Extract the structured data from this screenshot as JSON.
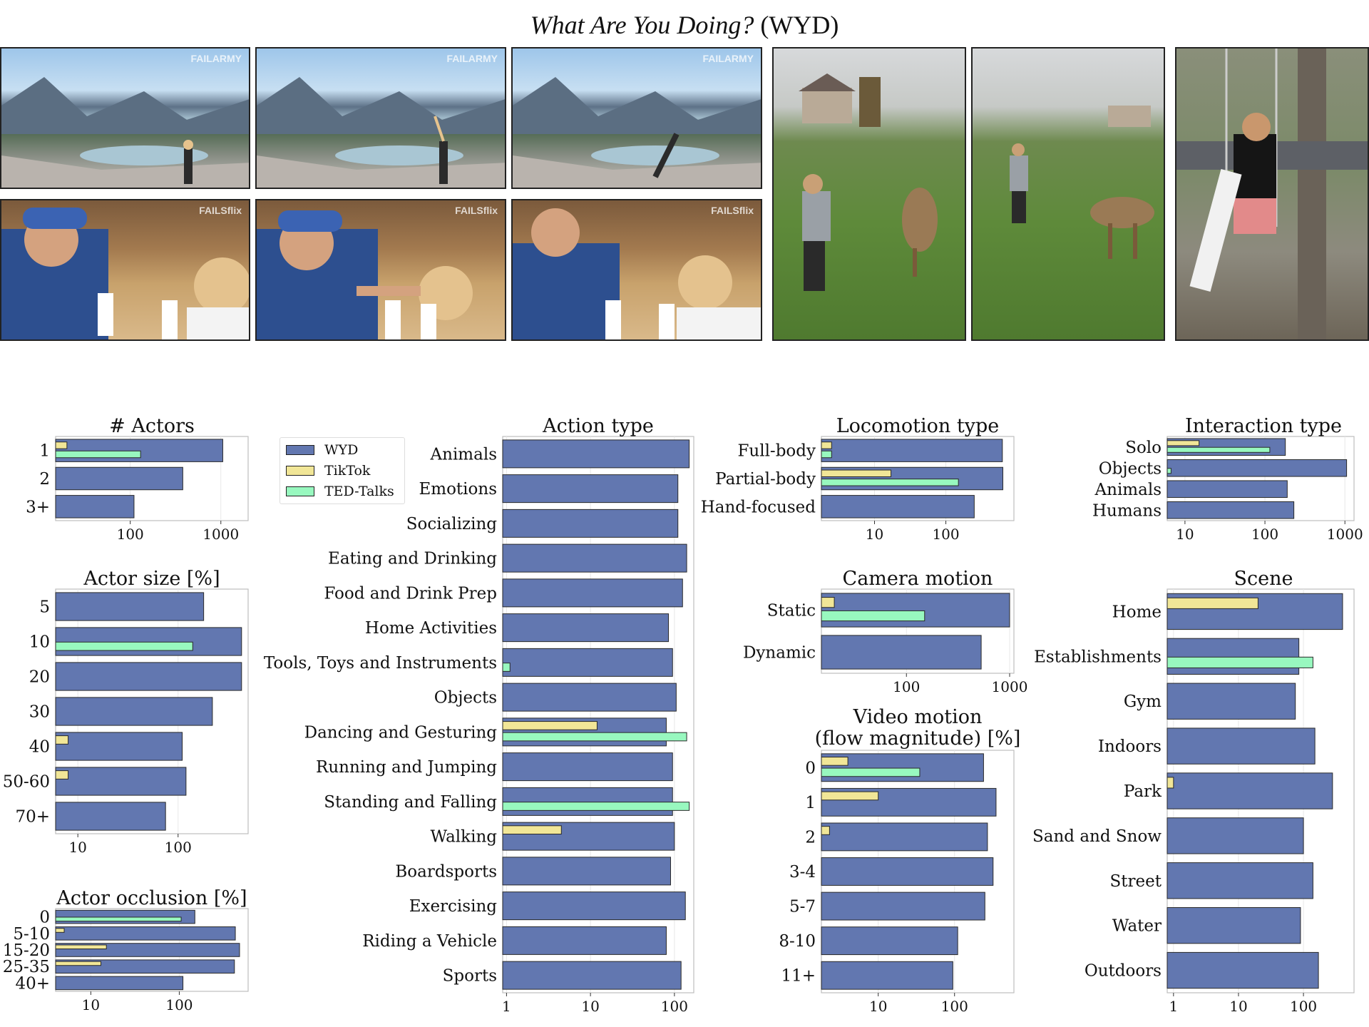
{
  "figure": {
    "title_italic": "What Are You Doing?",
    "title_rest": " (WYD)"
  },
  "frames": [
    {
      "scene": "mountain-lake-cartwheel-1",
      "watermark": "FAILARMY"
    },
    {
      "scene": "mountain-lake-cartwheel-2",
      "watermark": "FAILARMY"
    },
    {
      "scene": "mountain-lake-cartwheel-3",
      "watermark": "FAILARMY"
    },
    {
      "scene": "restaurant-ice-cream-1",
      "watermark": "FAILSflix"
    },
    {
      "scene": "restaurant-ice-cream-2",
      "watermark": "FAILSflix"
    },
    {
      "scene": "restaurant-ice-cream-3",
      "watermark": "FAILSflix"
    },
    {
      "scene": "lawn-deer-1",
      "watermark": ""
    },
    {
      "scene": "lawn-deer-2",
      "watermark": ""
    },
    {
      "scene": "tree-swing",
      "watermark": ""
    }
  ],
  "colors": {
    "WYD": "#6277b0",
    "TikTok": "#f1e697",
    "TED-Talks": "#98f8bf",
    "edge": "#2a2a2a",
    "grid": "#e8e8e8"
  },
  "legend": [
    "WYD",
    "TikTok",
    "TED-Talks"
  ],
  "chart_data": [
    {
      "type": "bar",
      "orientation": "horizontal",
      "scale": "log",
      "title": "# Actors",
      "xlim": [
        15,
        2000
      ],
      "ticks": [
        100,
        1000
      ],
      "tick_labels": [
        "100",
        "1000"
      ],
      "categories": [
        "1",
        "2",
        "3+"
      ],
      "series": [
        {
          "name": "WYD",
          "values": [
            1050,
            380,
            110
          ]
        },
        {
          "name": "TikTok",
          "values": [
            20,
            null,
            null
          ]
        },
        {
          "name": "TED-Talks",
          "values": [
            130,
            null,
            null
          ]
        }
      ]
    },
    {
      "type": "bar",
      "orientation": "horizontal",
      "scale": "log",
      "title": "Actor size [%]",
      "xlim": [
        6,
        500
      ],
      "ticks": [
        10,
        100
      ],
      "tick_labels": [
        "10",
        "100"
      ],
      "categories": [
        "5",
        "10",
        "20",
        "30",
        "40",
        "50-60",
        "70+"
      ],
      "series": [
        {
          "name": "WYD",
          "values": [
            180,
            430,
            430,
            220,
            110,
            120,
            75
          ]
        },
        {
          "name": "TikTok",
          "values": [
            null,
            null,
            null,
            null,
            8,
            8,
            null
          ]
        },
        {
          "name": "TED-Talks",
          "values": [
            null,
            140,
            null,
            null,
            null,
            null,
            null
          ]
        }
      ]
    },
    {
      "type": "bar",
      "orientation": "horizontal",
      "scale": "log",
      "title": "Actor occlusion [%]",
      "xlim": [
        4,
        600
      ],
      "ticks": [
        10,
        100
      ],
      "tick_labels": [
        "10",
        "100"
      ],
      "categories": [
        "0",
        "5-10",
        "15-20",
        "25-35",
        "40+"
      ],
      "series": [
        {
          "name": "WYD",
          "values": [
            150,
            430,
            480,
            420,
            110
          ]
        },
        {
          "name": "TikTok",
          "values": [
            null,
            5,
            15,
            13,
            null
          ]
        },
        {
          "name": "TED-Talks",
          "values": [
            105,
            null,
            null,
            null,
            null
          ]
        }
      ]
    },
    {
      "type": "bar",
      "orientation": "horizontal",
      "scale": "log",
      "title": "Action type",
      "xlim": [
        0.9,
        170
      ],
      "ticks": [
        1,
        10,
        100
      ],
      "tick_labels": [
        "1",
        "10",
        "100"
      ],
      "categories": [
        "Animals",
        "Emotions",
        "Socializing",
        "Eating and Drinking",
        "Food and Drink Prep",
        "Home Activities",
        "Tools, Toys and Instruments",
        "Objects",
        "Dancing and Gesturing",
        "Running and Jumping",
        "Standing and Falling",
        "Walking",
        "Boardsports",
        "Exercising",
        "Riding a Vehicle",
        "Sports"
      ],
      "series": [
        {
          "name": "WYD",
          "values": [
            150,
            110,
            110,
            140,
            125,
            85,
            95,
            105,
            80,
            95,
            95,
            100,
            90,
            135,
            80,
            120
          ]
        },
        {
          "name": "TikTok",
          "values": [
            null,
            null,
            null,
            null,
            null,
            null,
            null,
            null,
            12,
            null,
            null,
            4.5,
            null,
            null,
            null,
            null
          ]
        },
        {
          "name": "TED-Talks",
          "values": [
            null,
            null,
            null,
            null,
            null,
            null,
            1.1,
            null,
            140,
            null,
            150,
            null,
            null,
            null,
            null,
            null
          ]
        }
      ]
    },
    {
      "type": "bar",
      "orientation": "horizontal",
      "scale": "log",
      "title": "Locomotion type",
      "xlim": [
        1.8,
        900
      ],
      "ticks": [
        10,
        100
      ],
      "tick_labels": [
        "10",
        "100"
      ],
      "categories": [
        "Full-body",
        "Partial-body",
        "Hand-focused"
      ],
      "series": [
        {
          "name": "WYD",
          "values": [
            620,
            630,
            250
          ]
        },
        {
          "name": "TikTok",
          "values": [
            2.5,
            17,
            null
          ]
        },
        {
          "name": "TED-Talks",
          "values": [
            2.5,
            150,
            null
          ]
        }
      ]
    },
    {
      "type": "bar",
      "orientation": "horizontal",
      "scale": "log",
      "title": "Camera motion",
      "xlim": [
        15,
        1100
      ],
      "ticks": [
        100,
        1000
      ],
      "tick_labels": [
        "100",
        "1000"
      ],
      "categories": [
        "Static",
        "Dynamic"
      ],
      "series": [
        {
          "name": "WYD",
          "values": [
            1000,
            530
          ]
        },
        {
          "name": "TikTok",
          "values": [
            20,
            null
          ]
        },
        {
          "name": "TED-Talks",
          "values": [
            150,
            null
          ]
        }
      ]
    },
    {
      "type": "bar",
      "orientation": "horizontal",
      "scale": "log",
      "title": "Video motion (flow magnitude) [%]",
      "xlim": [
        1.8,
        600
      ],
      "ticks": [
        10,
        100
      ],
      "tick_labels": [
        "10",
        "100"
      ],
      "categories": [
        "0",
        "1",
        "2",
        "3-4",
        "5-7",
        "8-10",
        "11+"
      ],
      "series": [
        {
          "name": "WYD",
          "values": [
            240,
            350,
            270,
            320,
            250,
            110,
            95
          ]
        },
        {
          "name": "TikTok",
          "values": [
            4,
            10,
            2.3,
            null,
            null,
            null,
            null
          ]
        },
        {
          "name": "TED-Talks",
          "values": [
            35,
            null,
            null,
            null,
            null,
            null,
            null
          ]
        }
      ]
    },
    {
      "type": "bar",
      "orientation": "horizontal",
      "scale": "log",
      "title": "Interaction type",
      "xlim": [
        6,
        1300
      ],
      "ticks": [
        10,
        100,
        1000
      ],
      "tick_labels": [
        "10",
        "100",
        "1000"
      ],
      "categories": [
        "Solo",
        "Objects",
        "Animals",
        "Humans"
      ],
      "series": [
        {
          "name": "WYD",
          "values": [
            180,
            1050,
            190,
            230
          ]
        },
        {
          "name": "TikTok",
          "values": [
            15,
            null,
            null,
            null
          ]
        },
        {
          "name": "TED-Talks",
          "values": [
            115,
            6.7,
            null,
            null
          ]
        }
      ]
    },
    {
      "type": "bar",
      "orientation": "horizontal",
      "scale": "log",
      "title": "Scene",
      "xlim": [
        0.8,
        600
      ],
      "ticks": [
        1,
        10,
        100
      ],
      "tick_labels": [
        "1",
        "10",
        "100"
      ],
      "categories": [
        "Home",
        "Establishments",
        "Gym",
        "Indoors",
        "Park",
        "Sand and Snow",
        "Street",
        "Water",
        "Outdoors"
      ],
      "series": [
        {
          "name": "WYD",
          "values": [
            400,
            85,
            75,
            150,
            280,
            100,
            140,
            90,
            170
          ]
        },
        {
          "name": "TikTok",
          "values": [
            20,
            null,
            null,
            null,
            1,
            null,
            null,
            null,
            null
          ]
        },
        {
          "name": "TED-Talks",
          "values": [
            null,
            140,
            null,
            null,
            null,
            null,
            null,
            null,
            null
          ]
        }
      ]
    }
  ]
}
